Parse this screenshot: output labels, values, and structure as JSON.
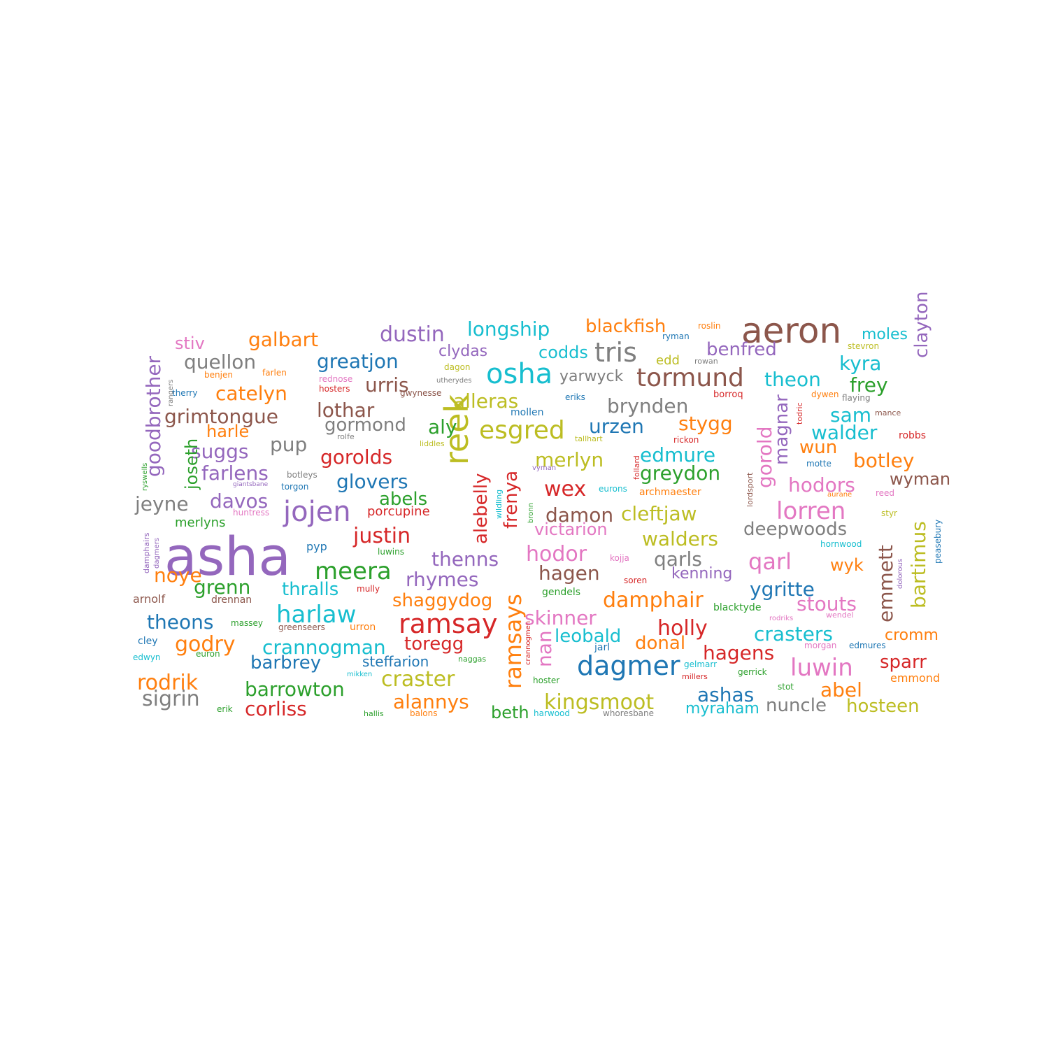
{
  "palette": [
    "#1f77b4",
    "#ff7f0e",
    "#2ca02c",
    "#d62728",
    "#9467bd",
    "#8c564b",
    "#e377c2",
    "#7f7f7f",
    "#bcbd22",
    "#17becf"
  ],
  "words": [
    {
      "text": "asha",
      "color": "#9467bd"
    },
    {
      "text": "aeron",
      "color": "#8c564b"
    },
    {
      "text": "reek",
      "color": "#bcbd22"
    },
    {
      "text": "osha",
      "color": "#17becf"
    },
    {
      "text": "jojen",
      "color": "#9467bd"
    },
    {
      "text": "ramsay",
      "color": "#d62728"
    },
    {
      "text": "dagmer",
      "color": "#1f77b4"
    },
    {
      "text": "tris",
      "color": "#7f7f7f"
    },
    {
      "text": "tormund",
      "color": "#8c564b"
    },
    {
      "text": "esgred",
      "color": "#bcbd22"
    },
    {
      "text": "meera",
      "color": "#2ca02c"
    },
    {
      "text": "harlaw",
      "color": "#17becf"
    },
    {
      "text": "luwin",
      "color": "#e377c2"
    },
    {
      "text": "lorren",
      "color": "#e377c2"
    },
    {
      "text": "ramsays",
      "color": "#ff7f0e"
    },
    {
      "text": "craster",
      "color": "#bcbd22"
    },
    {
      "text": "justin",
      "color": "#d62728"
    },
    {
      "text": "dustin",
      "color": "#9467bd"
    },
    {
      "text": "longship",
      "color": "#17becf"
    },
    {
      "text": "goodbrother",
      "color": "#9467bd"
    },
    {
      "text": "clayton",
      "color": "#9467bd"
    },
    {
      "text": "galbart",
      "color": "#ff7f0e"
    },
    {
      "text": "blackfish",
      "color": "#ff7f0e"
    },
    {
      "text": "benfred",
      "color": "#9467bd"
    },
    {
      "text": "quellon",
      "color": "#7f7f7f"
    },
    {
      "text": "greatjon",
      "color": "#1f77b4"
    },
    {
      "text": "theon",
      "color": "#17becf"
    },
    {
      "text": "kyra",
      "color": "#17becf"
    },
    {
      "text": "catelyn",
      "color": "#ff7f0e"
    },
    {
      "text": "urris",
      "color": "#8c564b"
    },
    {
      "text": "brynden",
      "color": "#7f7f7f"
    },
    {
      "text": "grimtongue",
      "color": "#8c564b"
    },
    {
      "text": "lothar",
      "color": "#8c564b"
    },
    {
      "text": "alleras",
      "color": "#bcbd22"
    },
    {
      "text": "gormond",
      "color": "#7f7f7f"
    },
    {
      "text": "aly",
      "color": "#2ca02c"
    },
    {
      "text": "urzen",
      "color": "#1f77b4"
    },
    {
      "text": "stygg",
      "color": "#ff7f0e"
    },
    {
      "text": "sam",
      "color": "#17becf"
    },
    {
      "text": "walder",
      "color": "#17becf"
    },
    {
      "text": "frey",
      "color": "#2ca02c"
    },
    {
      "text": "gorold",
      "color": "#e377c2"
    },
    {
      "text": "magnar",
      "color": "#9467bd"
    },
    {
      "text": "suggs",
      "color": "#9467bd"
    },
    {
      "text": "pup",
      "color": "#7f7f7f"
    },
    {
      "text": "gorolds",
      "color": "#d62728"
    },
    {
      "text": "alebelly",
      "color": "#d62728"
    },
    {
      "text": "frenya",
      "color": "#d62728"
    },
    {
      "text": "merlyn",
      "color": "#bcbd22"
    },
    {
      "text": "edmure",
      "color": "#17becf"
    },
    {
      "text": "greydon",
      "color": "#2ca02c"
    },
    {
      "text": "wun",
      "color": "#ff7f0e"
    },
    {
      "text": "botley",
      "color": "#ff7f0e"
    },
    {
      "text": "hodors",
      "color": "#e377c2"
    },
    {
      "text": "wyman",
      "color": "#8c564b"
    },
    {
      "text": "farlens",
      "color": "#9467bd"
    },
    {
      "text": "glovers",
      "color": "#1f77b4"
    },
    {
      "text": "wex",
      "color": "#d62728"
    },
    {
      "text": "davos",
      "color": "#9467bd"
    },
    {
      "text": "jeyne",
      "color": "#7f7f7f"
    },
    {
      "text": "abels",
      "color": "#2ca02c"
    },
    {
      "text": "damon",
      "color": "#8c564b"
    },
    {
      "text": "cleftjaw",
      "color": "#bcbd22"
    },
    {
      "text": "deepwoods",
      "color": "#7f7f7f"
    },
    {
      "text": "bartimus",
      "color": "#bcbd22"
    },
    {
      "text": "victarion",
      "color": "#e377c2"
    },
    {
      "text": "walders",
      "color": "#bcbd22"
    },
    {
      "text": "hodor",
      "color": "#e377c2"
    },
    {
      "text": "qarls",
      "color": "#7f7f7f"
    },
    {
      "text": "qarl",
      "color": "#e377c2"
    },
    {
      "text": "emmett",
      "color": "#8c564b"
    },
    {
      "text": "thenns",
      "color": "#9467bd"
    },
    {
      "text": "noye",
      "color": "#ff7f0e"
    },
    {
      "text": "rhymes",
      "color": "#9467bd"
    },
    {
      "text": "hagen",
      "color": "#8c564b"
    },
    {
      "text": "kenning",
      "color": "#9467bd"
    },
    {
      "text": "wyk",
      "color": "#ff7f0e"
    },
    {
      "text": "grenn",
      "color": "#2ca02c"
    },
    {
      "text": "thralls",
      "color": "#17becf"
    },
    {
      "text": "shaggydog",
      "color": "#ff7f0e"
    },
    {
      "text": "damphair",
      "color": "#ff7f0e"
    },
    {
      "text": "ygritte",
      "color": "#1f77b4"
    },
    {
      "text": "stouts",
      "color": "#e377c2"
    },
    {
      "text": "theons",
      "color": "#1f77b4"
    },
    {
      "text": "skinner",
      "color": "#e377c2"
    },
    {
      "text": "holly",
      "color": "#d62728"
    },
    {
      "text": "crasters",
      "color": "#17becf"
    },
    {
      "text": "cromm",
      "color": "#ff7f0e"
    },
    {
      "text": "godry",
      "color": "#ff7f0e"
    },
    {
      "text": "crannogman",
      "color": "#17becf"
    },
    {
      "text": "toregg",
      "color": "#d62728"
    },
    {
      "text": "nan",
      "color": "#e377c2"
    },
    {
      "text": "leobald",
      "color": "#17becf"
    },
    {
      "text": "donal",
      "color": "#ff7f0e"
    },
    {
      "text": "hagens",
      "color": "#d62728"
    },
    {
      "text": "sparr",
      "color": "#d62728"
    },
    {
      "text": "barbrey",
      "color": "#1f77b4"
    },
    {
      "text": "steffarion",
      "color": "#1f77b4"
    },
    {
      "text": "rodrik",
      "color": "#ff7f0e"
    },
    {
      "text": "abel",
      "color": "#ff7f0e"
    },
    {
      "text": "barrowton",
      "color": "#2ca02c"
    },
    {
      "text": "ashas",
      "color": "#1f77b4"
    },
    {
      "text": "sigrin",
      "color": "#7f7f7f"
    },
    {
      "text": "alannys",
      "color": "#ff7f0e"
    },
    {
      "text": "kingsmoot",
      "color": "#bcbd22"
    },
    {
      "text": "corliss",
      "color": "#d62728"
    },
    {
      "text": "beth",
      "color": "#2ca02c"
    },
    {
      "text": "myraham",
      "color": "#17becf"
    },
    {
      "text": "nuncle",
      "color": "#7f7f7f"
    },
    {
      "text": "hosteen",
      "color": "#bcbd22"
    },
    {
      "text": "stiv",
      "color": "#e377c2"
    },
    {
      "text": "clydas",
      "color": "#9467bd"
    },
    {
      "text": "codds",
      "color": "#17becf"
    },
    {
      "text": "yarwyck",
      "color": "#7f7f7f"
    },
    {
      "text": "edd",
      "color": "#bcbd22"
    },
    {
      "text": "moles",
      "color": "#17becf"
    },
    {
      "text": "harle",
      "color": "#ff7f0e"
    },
    {
      "text": "joseth",
      "color": "#2ca02c"
    },
    {
      "text": "merlyns",
      "color": "#2ca02c"
    },
    {
      "text": "porcupine",
      "color": "#d62728"
    },
    {
      "text": "pyp",
      "color": "#1f77b4"
    },
    {
      "text": "arnolf",
      "color": "#8c564b"
    },
    {
      "text": "drennan",
      "color": "#8c564b"
    },
    {
      "text": "roslin",
      "color": "#ff7f0e"
    },
    {
      "text": "ryman",
      "color": "#1f77b4"
    },
    {
      "text": "stevron",
      "color": "#bcbd22"
    },
    {
      "text": "dagon",
      "color": "#bcbd22"
    },
    {
      "text": "rowan",
      "color": "#7f7f7f"
    },
    {
      "text": "benjen",
      "color": "#ff7f0e"
    },
    {
      "text": "farlen",
      "color": "#ff7f0e"
    },
    {
      "text": "rangers",
      "color": "#7f7f7f"
    },
    {
      "text": "rednose",
      "color": "#e377c2"
    },
    {
      "text": "utherydes",
      "color": "#7f7f7f"
    },
    {
      "text": "hosters",
      "color": "#d62728"
    },
    {
      "text": "gwynesse",
      "color": "#8c564b"
    },
    {
      "text": "therry",
      "color": "#1f77b4"
    },
    {
      "text": "eriks",
      "color": "#1f77b4"
    },
    {
      "text": "borroq",
      "color": "#d62728"
    },
    {
      "text": "todric",
      "color": "#d62728"
    },
    {
      "text": "dywen",
      "color": "#ff7f0e"
    },
    {
      "text": "flaying",
      "color": "#7f7f7f"
    },
    {
      "text": "mollen",
      "color": "#1f77b4"
    },
    {
      "text": "mance",
      "color": "#8c564b"
    },
    {
      "text": "rolfe",
      "color": "#7f7f7f"
    },
    {
      "text": "liddles",
      "color": "#bcbd22"
    },
    {
      "text": "tallhart",
      "color": "#bcbd22"
    },
    {
      "text": "rickon",
      "color": "#d62728"
    },
    {
      "text": "robbs",
      "color": "#d62728"
    },
    {
      "text": "lordsport",
      "color": "#8c564b"
    },
    {
      "text": "follard",
      "color": "#d62728"
    },
    {
      "text": "motte",
      "color": "#1f77b4"
    },
    {
      "text": "ryswells",
      "color": "#2ca02c"
    },
    {
      "text": "botleys",
      "color": "#7f7f7f"
    },
    {
      "text": "giantsbane",
      "color": "#9467bd"
    },
    {
      "text": "torgon",
      "color": "#1f77b4"
    },
    {
      "text": "wildling",
      "color": "#17becf"
    },
    {
      "text": "vyman",
      "color": "#9467bd"
    },
    {
      "text": "eurons",
      "color": "#17becf"
    },
    {
      "text": "archmaester",
      "color": "#ff7f0e"
    },
    {
      "text": "aurane",
      "color": "#ff7f0e"
    },
    {
      "text": "reed",
      "color": "#e377c2"
    },
    {
      "text": "bronn",
      "color": "#2ca02c"
    },
    {
      "text": "huntress",
      "color": "#e377c2"
    },
    {
      "text": "damphairs",
      "color": "#9467bd"
    },
    {
      "text": "dagmers",
      "color": "#9467bd"
    },
    {
      "text": "styr",
      "color": "#bcbd22"
    },
    {
      "text": "peasebury",
      "color": "#1f77b4"
    },
    {
      "text": "hornwood",
      "color": "#17becf"
    },
    {
      "text": "luwins",
      "color": "#2ca02c"
    },
    {
      "text": "kojja",
      "color": "#e377c2"
    },
    {
      "text": "soren",
      "color": "#d62728"
    },
    {
      "text": "dolorous",
      "color": "#9467bd"
    },
    {
      "text": "mully",
      "color": "#d62728"
    },
    {
      "text": "gendels",
      "color": "#2ca02c"
    },
    {
      "text": "blacktyde",
      "color": "#2ca02c"
    },
    {
      "text": "rodriks",
      "color": "#e377c2"
    },
    {
      "text": "wendel",
      "color": "#e377c2"
    },
    {
      "text": "massey",
      "color": "#2ca02c"
    },
    {
      "text": "greenseers",
      "color": "#8c564b"
    },
    {
      "text": "urron",
      "color": "#ff7f0e"
    },
    {
      "text": "cley",
      "color": "#1f77b4"
    },
    {
      "text": "euron",
      "color": "#2ca02c"
    },
    {
      "text": "edwyn",
      "color": "#17becf"
    },
    {
      "text": "crannogmen",
      "color": "#d62728"
    },
    {
      "text": "jarl",
      "color": "#1f77b4"
    },
    {
      "text": "morgan",
      "color": "#e377c2"
    },
    {
      "text": "edmures",
      "color": "#1f77b4"
    },
    {
      "text": "naggas",
      "color": "#2ca02c"
    },
    {
      "text": "gelmarr",
      "color": "#17becf"
    },
    {
      "text": "millers",
      "color": "#d62728"
    },
    {
      "text": "gerrick",
      "color": "#2ca02c"
    },
    {
      "text": "emmond",
      "color": "#ff7f0e"
    },
    {
      "text": "mikken",
      "color": "#17becf"
    },
    {
      "text": "hoster",
      "color": "#2ca02c"
    },
    {
      "text": "stot",
      "color": "#2ca02c"
    },
    {
      "text": "erik",
      "color": "#2ca02c"
    },
    {
      "text": "hallis",
      "color": "#2ca02c"
    },
    {
      "text": "balons",
      "color": "#ff7f0e"
    },
    {
      "text": "harwood",
      "color": "#17becf"
    },
    {
      "text": "whoresbane",
      "color": "#7f7f7f"
    }
  ]
}
